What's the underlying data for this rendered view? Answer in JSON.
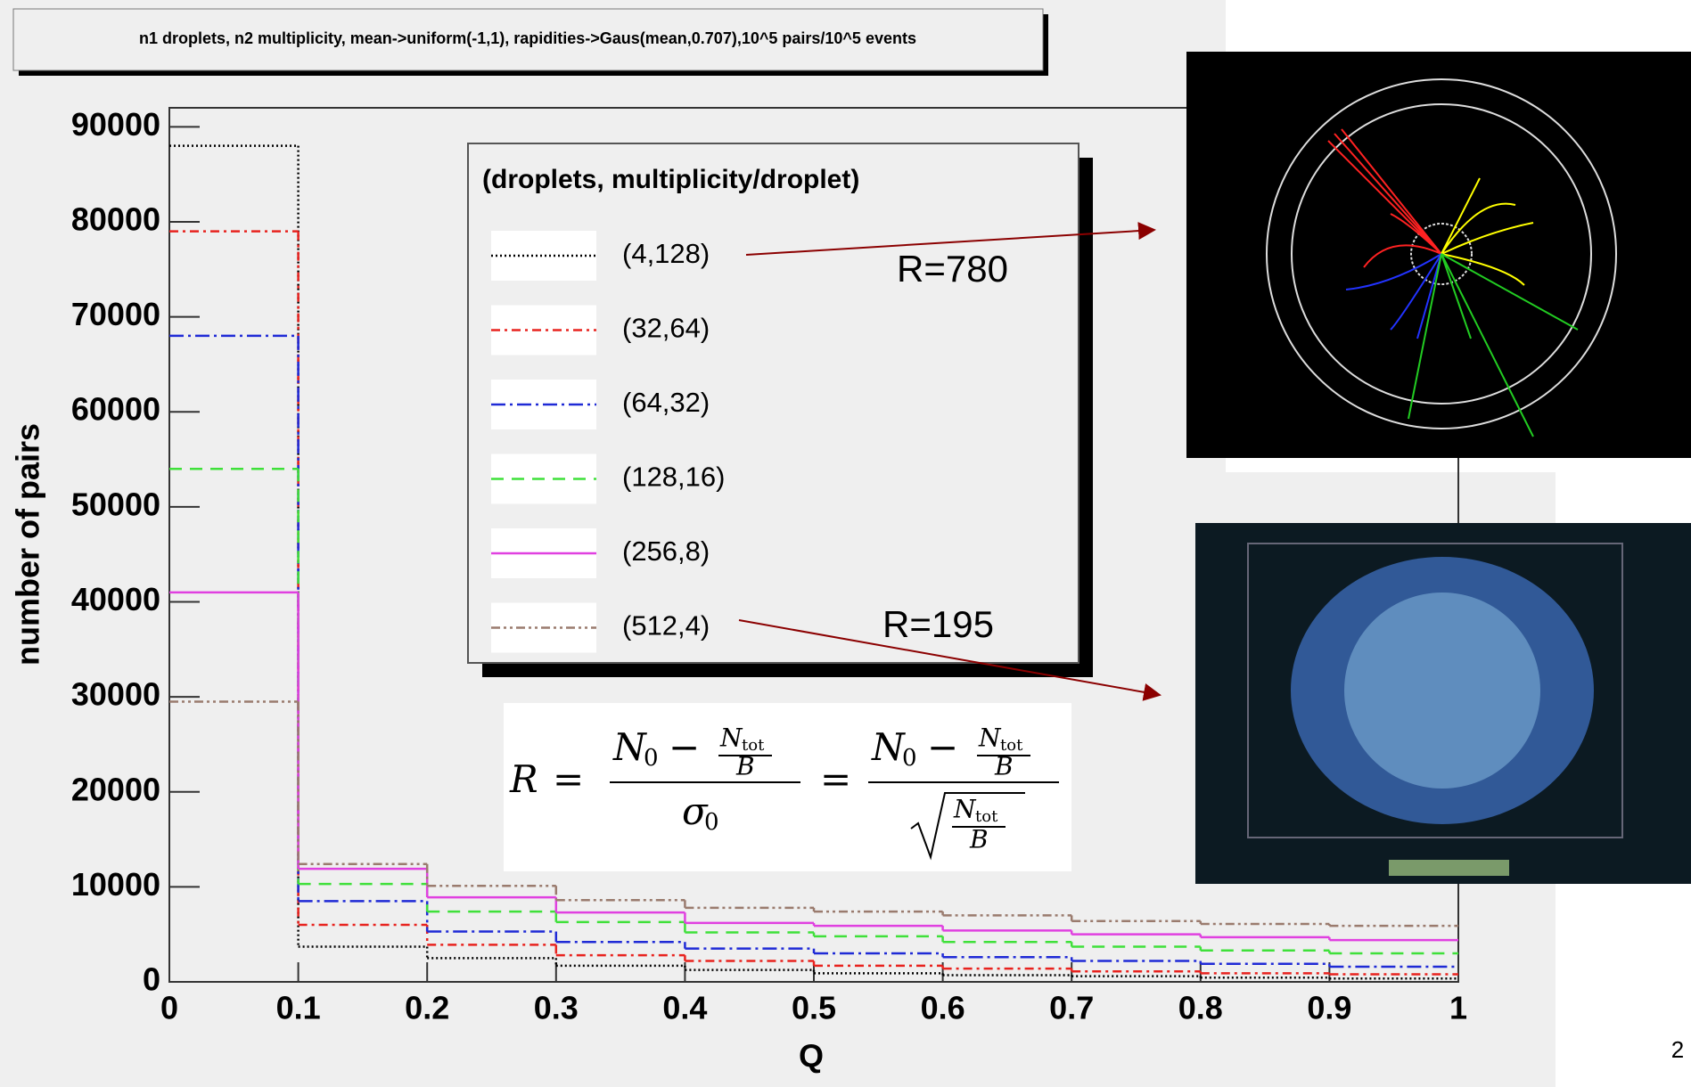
{
  "chart_data": {
    "type": "histogram",
    "title": "n1 droplets, n2 multiplicity, mean->uniform(-1,1), rapidities->Gaus(mean,0.707),10^5 pairs/10^5 events",
    "x_label": "Q",
    "y_label": "number of pairs",
    "legend_title": "(droplets, multiplicity/droplet)",
    "bins": [
      0,
      0.1,
      0.2,
      0.3,
      0.4,
      0.5,
      0.6,
      0.7,
      0.8,
      0.9,
      1
    ],
    "series": [
      {
        "name": "(4,128)",
        "color": "#000000",
        "dash": "dotted",
        "values": [
          88000,
          3700,
          2500,
          1700,
          1250,
          900,
          700,
          600,
          450,
          350
        ]
      },
      {
        "name": "(32,64)",
        "color": "#e8231f",
        "dash": "dashdot",
        "values": [
          79000,
          6000,
          3900,
          2800,
          2200,
          1700,
          1400,
          1100,
          900,
          800
        ]
      },
      {
        "name": "(64,32)",
        "color": "#1f2ad6",
        "dash": "longdashdot",
        "values": [
          68000,
          8500,
          5300,
          4200,
          3500,
          3000,
          2600,
          2200,
          1900,
          1600
        ]
      },
      {
        "name": "(128,16)",
        "color": "#3fe03a",
        "dash": "dashed",
        "values": [
          54000,
          10300,
          7400,
          6300,
          5200,
          4800,
          4200,
          3700,
          3300,
          3000
        ]
      },
      {
        "name": "(256,8)",
        "color": "#e040e0",
        "dash": "solid",
        "values": [
          41000,
          11900,
          8900,
          7300,
          6200,
          5900,
          5400,
          5000,
          4700,
          4400
        ]
      },
      {
        "name": "(512,4)",
        "color": "#9a7b6e",
        "dash": "dashdotdot",
        "values": [
          29500,
          12400,
          10100,
          8600,
          7800,
          7400,
          7000,
          6400,
          6100,
          5900
        ]
      }
    ],
    "xlim": [
      0,
      1
    ],
    "xticks": [
      0,
      0.1,
      0.2,
      0.3,
      0.4,
      0.5,
      0.6,
      0.7,
      0.8,
      0.9,
      1
    ],
    "ylim": [
      0,
      92000
    ],
    "yticks": [
      0,
      10000,
      20000,
      30000,
      40000,
      50000,
      60000,
      70000,
      80000,
      90000
    ],
    "annotations": [
      "R=780",
      "R=195"
    ],
    "formula": {
      "r": "R",
      "eq": "=",
      "n": "N",
      "zero": "0",
      "minus": "−",
      "tot": "tot",
      "b": "B",
      "sigma": "σ"
    },
    "page_number": "2"
  }
}
